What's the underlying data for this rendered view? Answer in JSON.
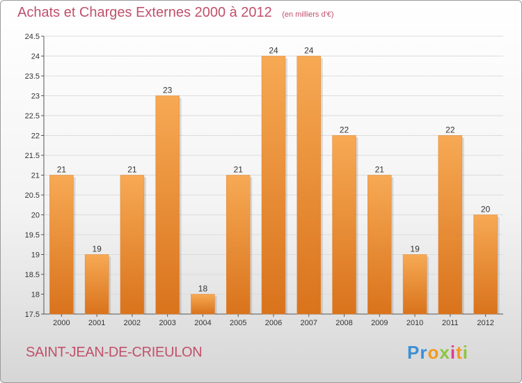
{
  "header": {
    "title": "Achats et Charges Externes 2000 à 2012",
    "subtitle": "(en milliers d'€)"
  },
  "footer": {
    "place": "SAINT-JEAN-DE-CRIEULON",
    "brand": "Proxiti"
  },
  "colors": {
    "bar_top": "#f7a954",
    "bar_bottom": "#d9731c",
    "title": "#c0506a",
    "axis": "#555555",
    "grid": "#dcdcdc"
  },
  "chart_data": {
    "type": "bar",
    "title": "Achats et Charges Externes 2000 à 2012",
    "subtitle": "(en milliers d'€)",
    "categories": [
      "2000",
      "2001",
      "2002",
      "2003",
      "2004",
      "2005",
      "2006",
      "2007",
      "2008",
      "2009",
      "2010",
      "2011",
      "2012"
    ],
    "values": [
      21,
      19,
      21,
      23,
      18,
      21,
      24,
      24,
      22,
      21,
      19,
      22,
      20
    ],
    "data_labels": [
      "21",
      "19",
      "21",
      "23",
      "18",
      "21",
      "24",
      "24",
      "22",
      "21",
      "19",
      "22",
      "20"
    ],
    "ylim": [
      17.5,
      24.5
    ],
    "yticks": [
      17.5,
      18,
      18.5,
      19,
      19.5,
      20,
      20.5,
      21,
      21.5,
      22,
      22.5,
      23,
      23.5,
      24,
      24.5
    ],
    "ytick_labels": [
      "17.5",
      "18",
      "18.5",
      "19",
      "19.5",
      "20",
      "20.5",
      "21",
      "21.5",
      "22",
      "22.5",
      "23",
      "23.5",
      "24",
      "24.5"
    ],
    "xlabel": "",
    "ylabel": "",
    "grid": true,
    "legend": "none"
  }
}
